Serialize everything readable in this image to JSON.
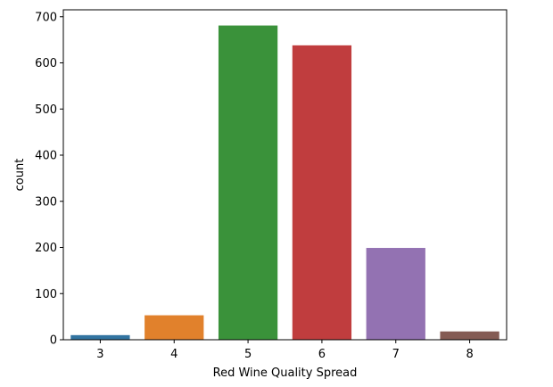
{
  "chart_data": {
    "type": "bar",
    "categories": [
      "3",
      "4",
      "5",
      "6",
      "7",
      "8"
    ],
    "values": [
      10,
      53,
      681,
      638,
      199,
      18
    ],
    "colors": [
      "#3274a1",
      "#e1812c",
      "#3a923a",
      "#c03d3e",
      "#9372b2",
      "#845b53"
    ],
    "title": "",
    "xlabel": "Red Wine Quality Spread",
    "ylabel": "count",
    "ylim": [
      0,
      715
    ],
    "yticks": [
      0,
      100,
      200,
      300,
      400,
      500,
      600,
      700
    ],
    "grid": false,
    "legend": "none"
  }
}
